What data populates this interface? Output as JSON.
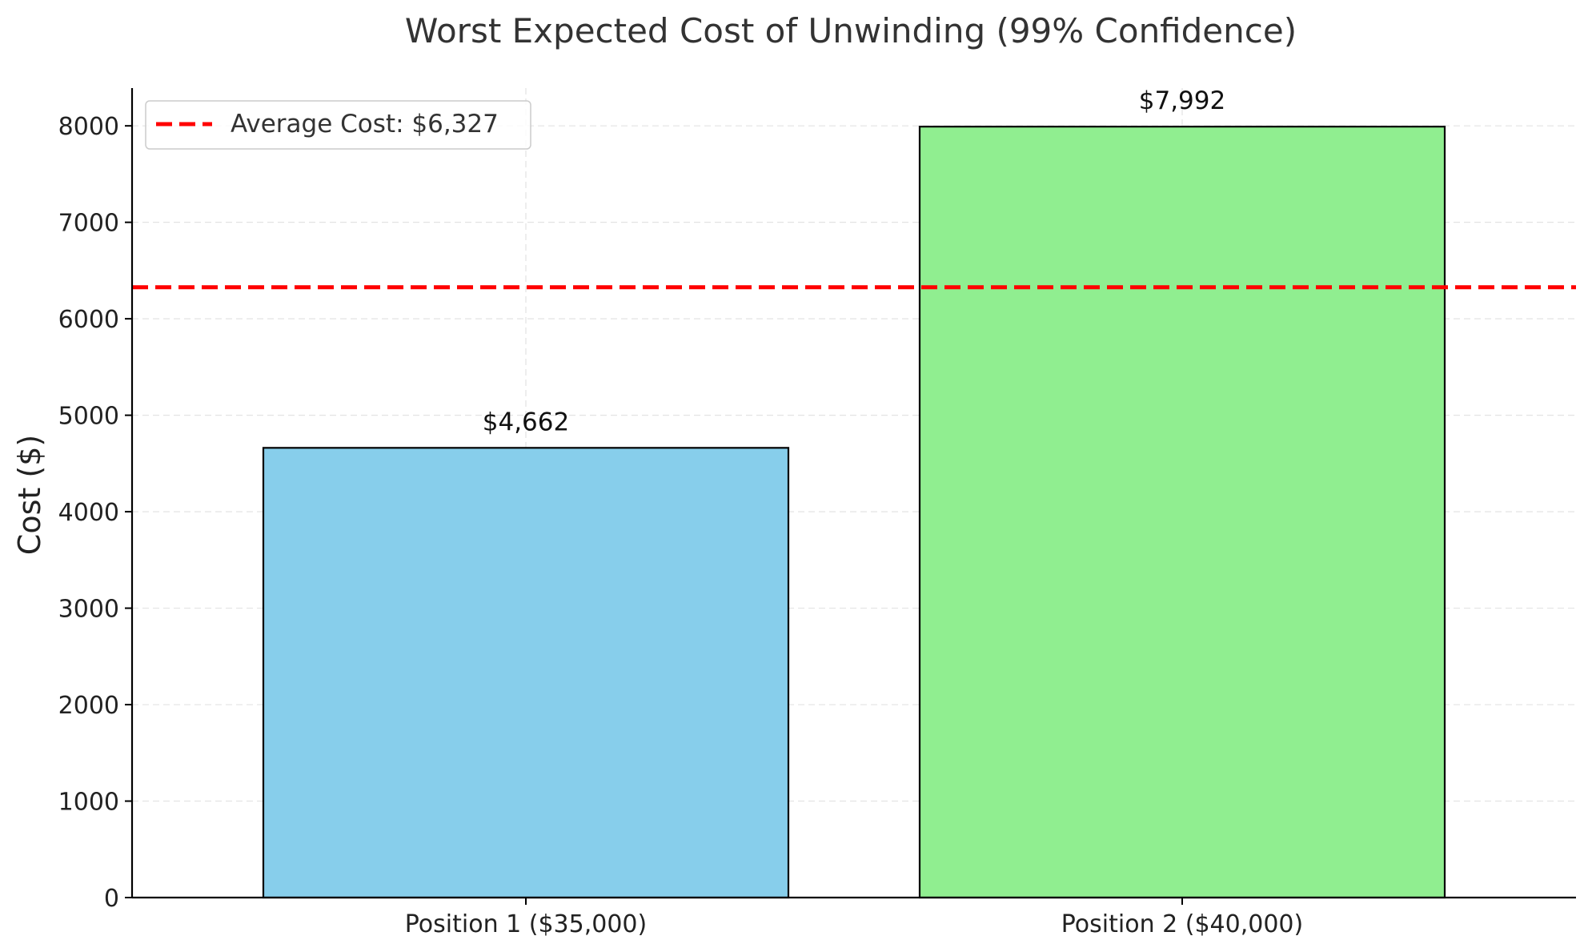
{
  "chart_data": {
    "type": "bar",
    "title": "Worst Expected Cost of Unwinding (99% Confidence)",
    "xlabel": "",
    "ylabel": "Cost ($)",
    "categories": [
      "Position 1 ($35,000)",
      "Position 2 ($40,000)"
    ],
    "values": [
      4662,
      7992
    ],
    "data_labels": [
      "$4,662",
      "$7,992"
    ],
    "bar_colors": [
      "#87ceeb",
      "#90ee90"
    ],
    "bar_edge_color": "#000000",
    "ylim": [
      0,
      8391.6
    ],
    "yticks": [
      0,
      1000,
      2000,
      3000,
      4000,
      5000,
      6000,
      7000,
      8000
    ],
    "ytick_labels": [
      "0",
      "1000",
      "2000",
      "3000",
      "4000",
      "5000",
      "6000",
      "7000",
      "8000"
    ],
    "grid": true,
    "reference_line": {
      "value": 6327,
      "label": "Average Cost: $6,327",
      "color": "#ff0000",
      "style": "dashed"
    },
    "legend": {
      "position": "top-left"
    }
  }
}
